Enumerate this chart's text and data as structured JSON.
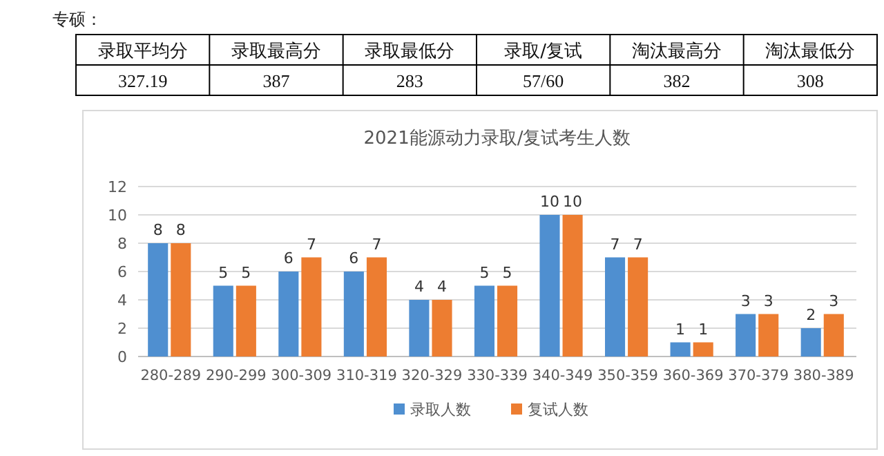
{
  "chart_data": {
    "type": "bar",
    "title": "2021能源动力录取/复试考生人数",
    "categories": [
      "280-289",
      "290-299",
      "300-309",
      "310-319",
      "320-329",
      "330-339",
      "340-349",
      "350-359",
      "360-369",
      "370-379",
      "380-389"
    ],
    "series": [
      {
        "name": "录取人数",
        "color": "#4f8fd0",
        "values": [
          8,
          5,
          6,
          6,
          4,
          5,
          10,
          7,
          1,
          3,
          2
        ]
      },
      {
        "name": "复试人数",
        "color": "#ed7d31",
        "values": [
          8,
          5,
          7,
          7,
          4,
          5,
          10,
          7,
          1,
          3,
          3
        ]
      }
    ],
    "ylim": [
      0,
      12
    ],
    "yticks": [
      0,
      2,
      4,
      6,
      8,
      10,
      12
    ],
    "grid": "y",
    "legend": "bottom",
    "data_labels": true,
    "annotations": [
      "专硕：",
      "录取平均分",
      "录取最高分",
      "录取最低分",
      "录取/复试",
      "淘汰最高分",
      "淘汰最低分",
      "327.19",
      "387",
      "283",
      "57/60",
      "382",
      "308"
    ]
  }
}
